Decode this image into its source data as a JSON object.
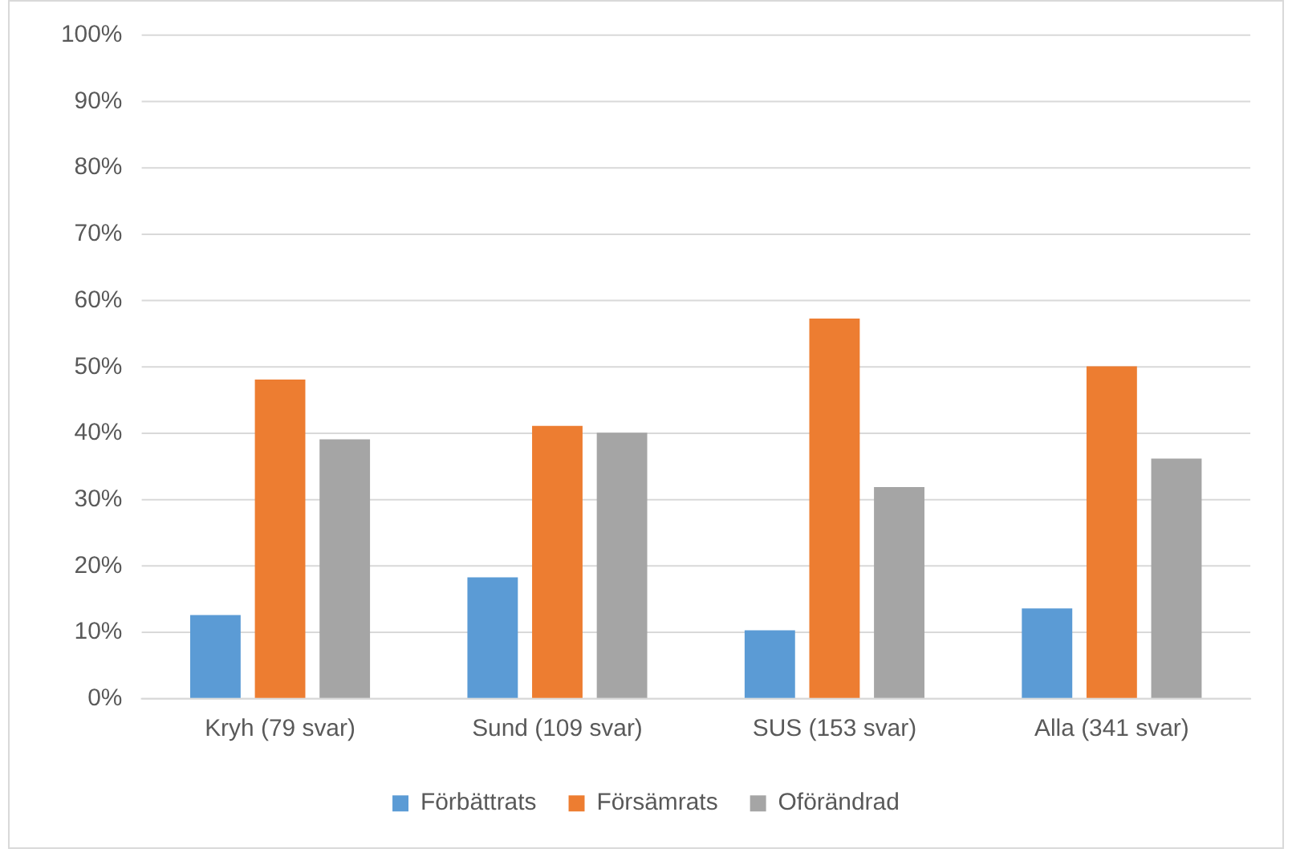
{
  "chart_data": {
    "type": "bar",
    "categories": [
      "Kryh (79 svar)",
      "Sund (109 svar)",
      "SUS (153 svar)",
      "Alla (341 svar)"
    ],
    "series": [
      {
        "name": "Förbättrats",
        "color": "#5b9bd5",
        "values": [
          12.6,
          18.3,
          10.3,
          13.6
        ]
      },
      {
        "name": "Försämrats",
        "color": "#ed7d31",
        "values": [
          48.1,
          41.1,
          57.3,
          50.1
        ]
      },
      {
        "name": "Oförändrad",
        "color": "#a5a5a5",
        "values": [
          39.1,
          40.1,
          31.9,
          36.2
        ]
      }
    ],
    "ylim": [
      0,
      100
    ],
    "yticks": [
      {
        "value": 0,
        "label": "0%"
      },
      {
        "value": 10,
        "label": "10%"
      },
      {
        "value": 20,
        "label": "20%"
      },
      {
        "value": 30,
        "label": "30%"
      },
      {
        "value": 40,
        "label": "40%"
      },
      {
        "value": 50,
        "label": "50%"
      },
      {
        "value": 60,
        "label": "60%"
      },
      {
        "value": 70,
        "label": "70%"
      },
      {
        "value": 80,
        "label": "80%"
      },
      {
        "value": 90,
        "label": "90%"
      },
      {
        "value": 100,
        "label": "100%"
      }
    ],
    "grid": "y",
    "legend": "bottom"
  }
}
